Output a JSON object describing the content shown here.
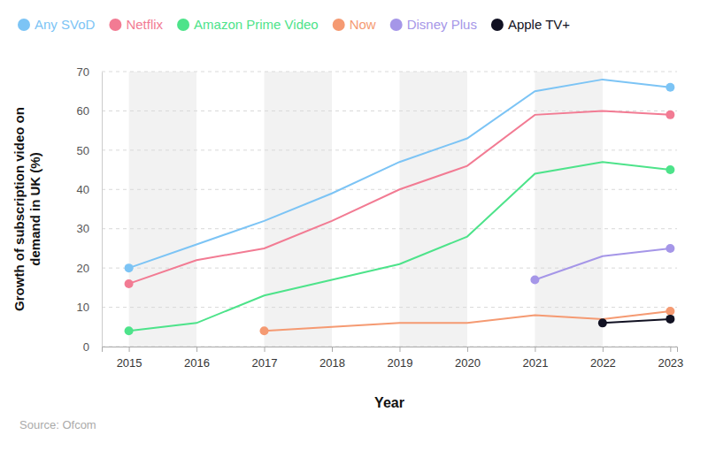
{
  "chart_data": {
    "type": "line",
    "y_label": "Growth of subscription video on demand in UK (%)",
    "x_label": "Year",
    "source": "Source: Ofcom",
    "x": [
      2015,
      2016,
      2017,
      2018,
      2019,
      2020,
      2021,
      2022,
      2023
    ],
    "xlim": [
      2014.6,
      2023.1
    ],
    "xticks": [
      2015,
      2016,
      2017,
      2018,
      2019,
      2020,
      2021,
      2022,
      2023
    ],
    "ylim": [
      0,
      70
    ],
    "yticks": [
      0,
      10,
      20,
      30,
      40,
      50,
      60,
      70
    ],
    "grid": true,
    "legend": "top",
    "marker": "circle",
    "series": [
      {
        "name": "Any SVoD",
        "color": "#7cc4f5",
        "values": [
          20,
          26,
          32,
          39,
          47,
          53,
          65,
          68,
          66
        ]
      },
      {
        "name": "Netflix",
        "color": "#f27b93",
        "values": [
          16,
          22,
          25,
          32,
          40,
          46,
          59,
          60,
          59
        ]
      },
      {
        "name": "Amazon Prime Video",
        "color": "#4de38a",
        "values": [
          4,
          6,
          13,
          17,
          21,
          28,
          44,
          47,
          45
        ]
      },
      {
        "name": "Now",
        "color": "#f59a72",
        "values": [
          null,
          null,
          4,
          5,
          6,
          6,
          8,
          7,
          9
        ]
      },
      {
        "name": "Disney Plus",
        "color": "#a596e8",
        "values": [
          null,
          null,
          null,
          null,
          null,
          null,
          17,
          23,
          25
        ]
      },
      {
        "name": "Apple TV+",
        "color": "#111122",
        "values": [
          null,
          null,
          null,
          null,
          null,
          null,
          null,
          6,
          7
        ]
      }
    ]
  }
}
